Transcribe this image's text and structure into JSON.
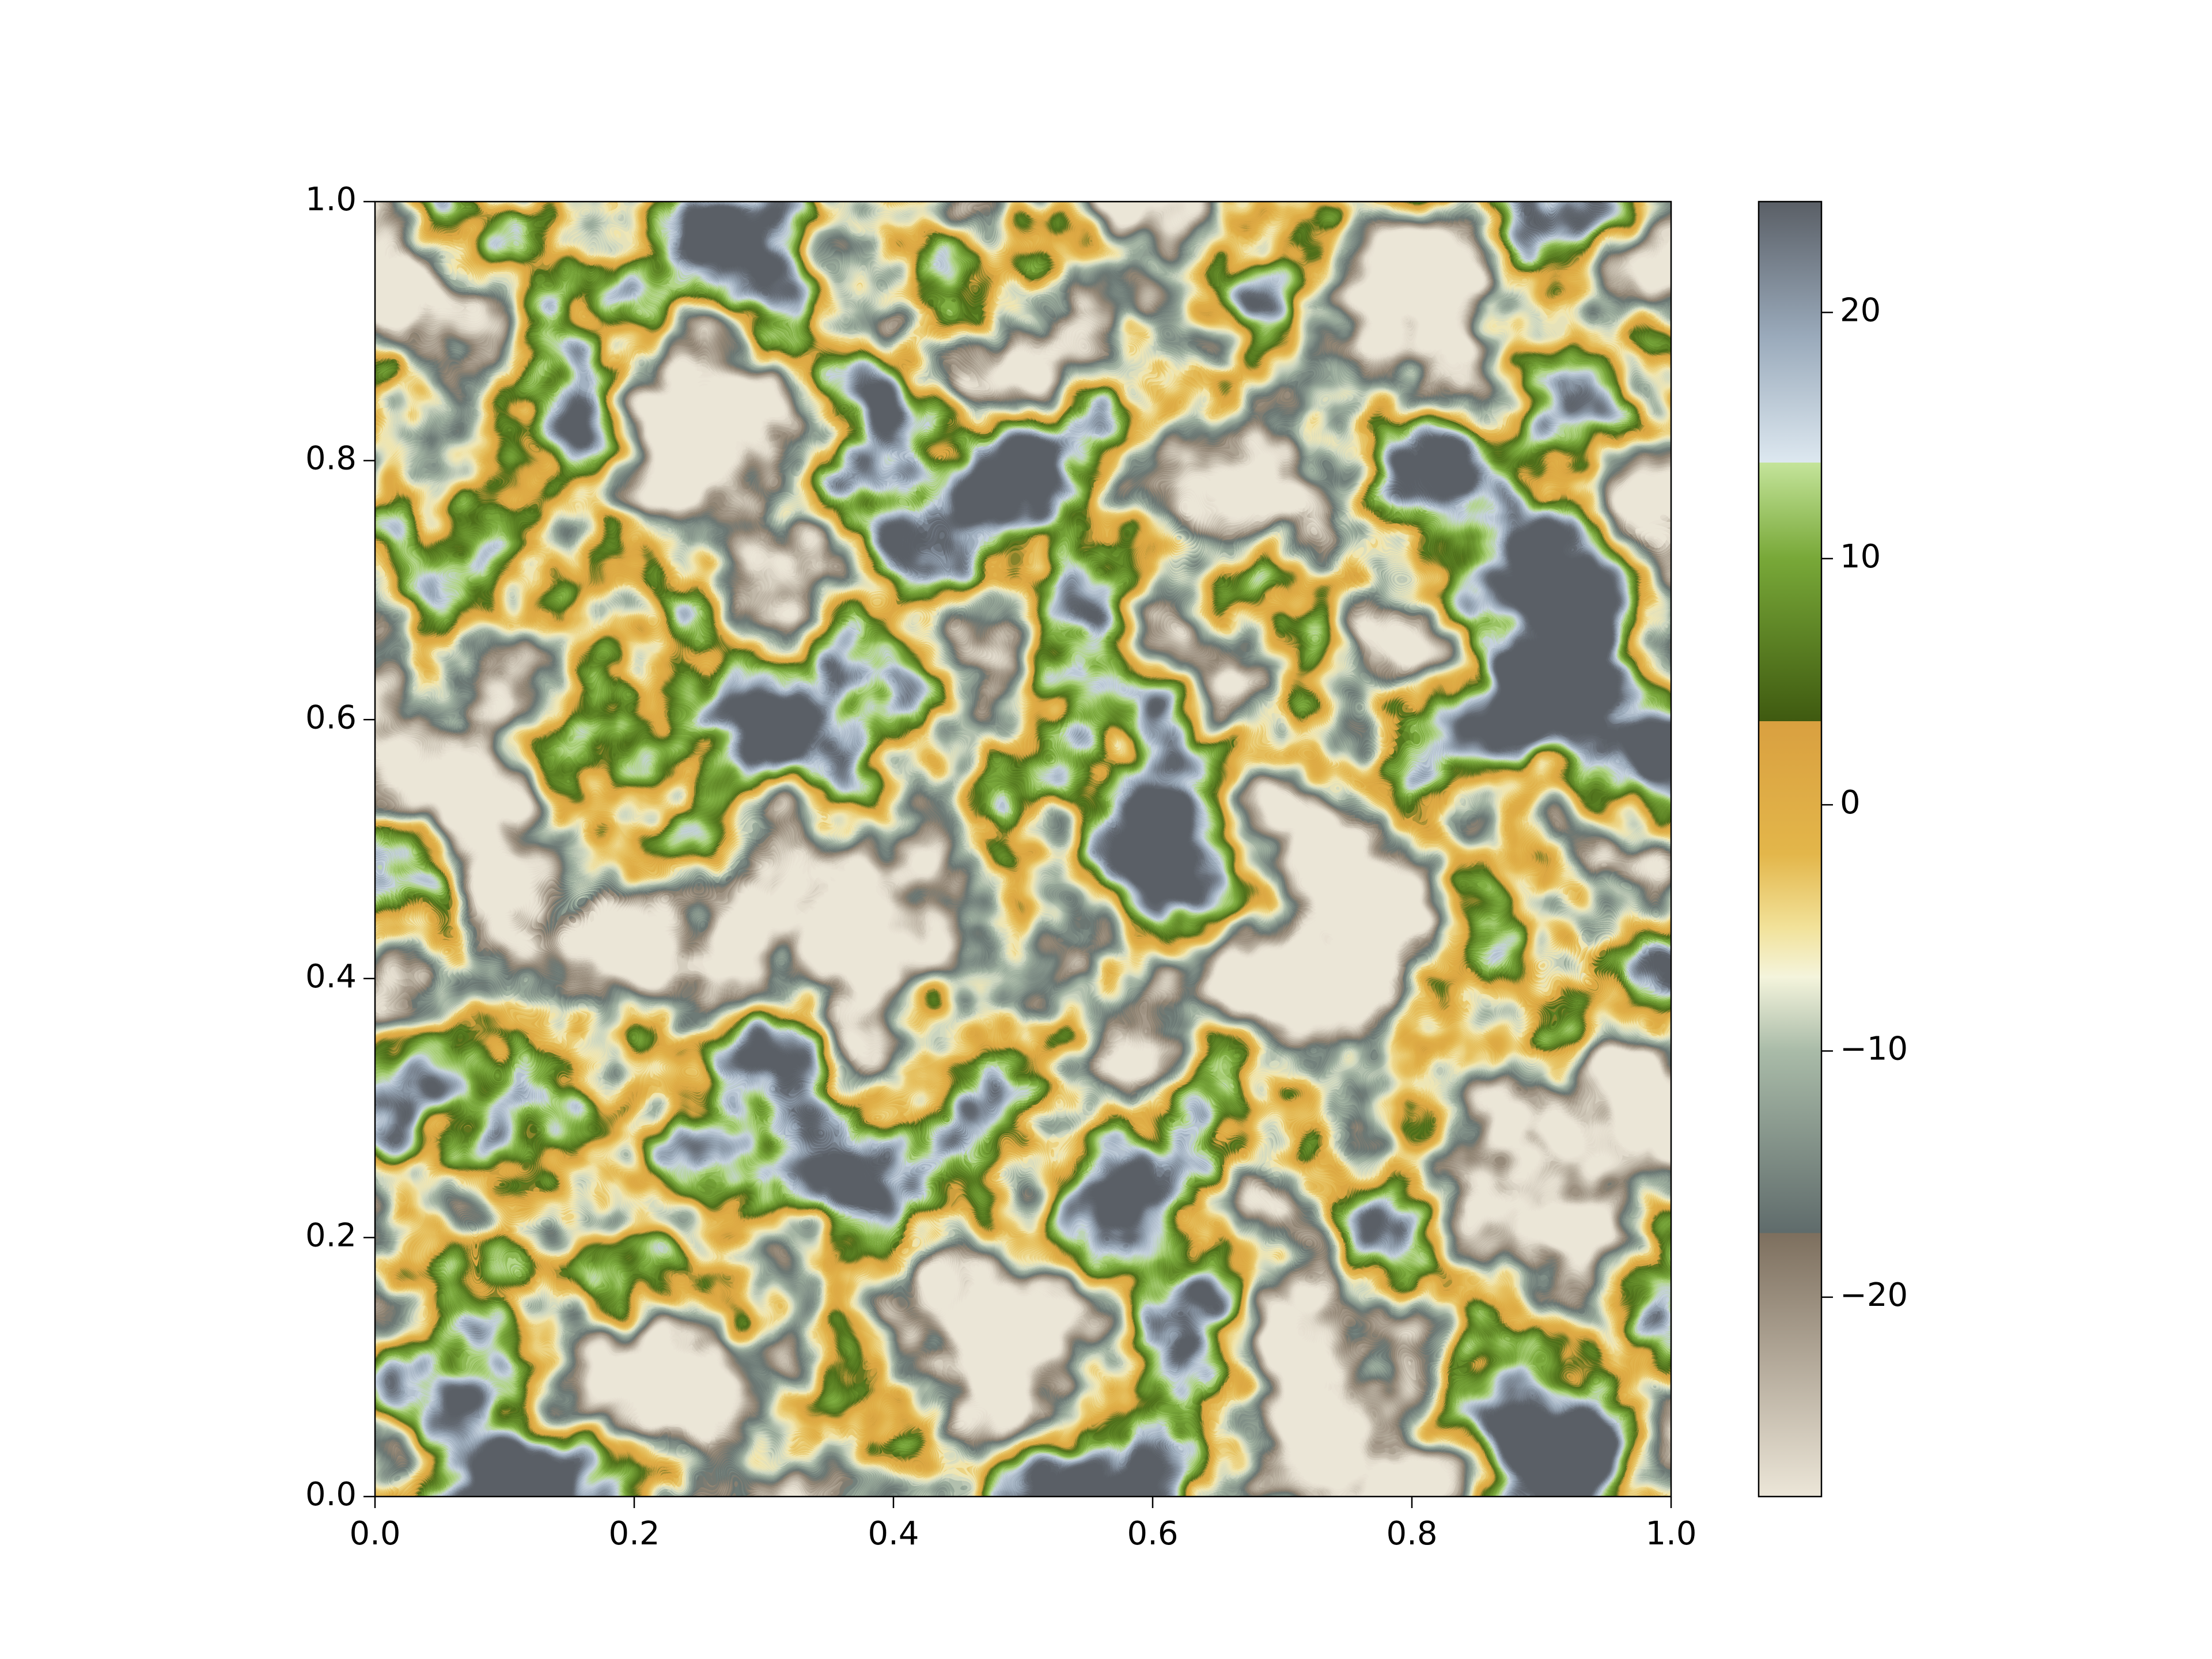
{
  "chart_data": {
    "type": "heatmap",
    "xlim": [
      0,
      1
    ],
    "ylim": [
      0,
      1
    ],
    "xticks": [
      {
        "value": 0,
        "label": "0.0"
      },
      {
        "value": 0.2,
        "label": "0.2"
      },
      {
        "value": 0.4,
        "label": "0.4"
      },
      {
        "value": 0.6,
        "label": "0.6"
      },
      {
        "value": 0.8,
        "label": "0.8"
      },
      {
        "value": 1,
        "label": "1.0"
      }
    ],
    "yticks": [
      {
        "value": 0,
        "label": "0.0"
      },
      {
        "value": 0.2,
        "label": "0.2"
      },
      {
        "value": 0.4,
        "label": "0.4"
      },
      {
        "value": 0.6,
        "label": "0.6"
      },
      {
        "value": 0.8,
        "label": "0.8"
      },
      {
        "value": 1,
        "label": "1.0"
      }
    ],
    "colorbar": {
      "clim": [
        -28.1,
        24.5
      ],
      "ticks": [
        {
          "value": -20,
          "label": "−20"
        },
        {
          "value": -10,
          "label": "−10"
        },
        0,
        10,
        20
      ],
      "colormap": [
        [
          -28.1,
          "#ece6d8"
        ],
        [
          -17.4,
          "#7d6f5e"
        ],
        [
          -17.4,
          "#5f6b6b"
        ],
        [
          -10,
          "#a9bba8"
        ],
        [
          -7,
          "#f4f4dc"
        ],
        [
          -5,
          "#f2e29a"
        ],
        [
          -2,
          "#e3b64a"
        ],
        [
          3.4,
          "#d9a040"
        ],
        [
          3.4,
          "#3f5a10"
        ],
        [
          10,
          "#78a838"
        ],
        [
          13.9,
          "#c4e49a"
        ],
        [
          13.9,
          "#dde8f0"
        ],
        [
          19,
          "#9aaabb"
        ],
        [
          24.5,
          "#5a5f66"
        ]
      ]
    }
  }
}
